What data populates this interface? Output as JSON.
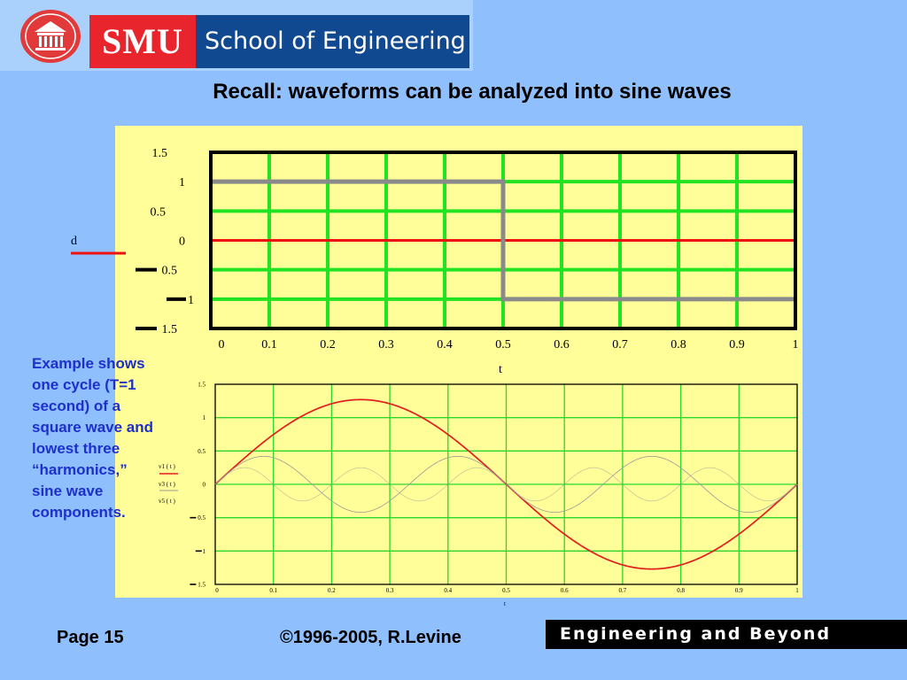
{
  "header": {
    "logo_left": "SMU",
    "logo_right": "School of Engineering"
  },
  "slide_title": "Recall: waveforms can be analyzed into sine waves",
  "side_note": "Example shows one cycle (T=1 second) of a square wave and lowest three “harmonics,” sine wave components.",
  "footer": {
    "page": "Page 15",
    "copyright": "©1996-2005, R.Levine",
    "tagline": "Engineering and Beyond"
  },
  "colors": {
    "background": "#8fbffd",
    "panel": "#fffe98",
    "grid_top": "#21e321",
    "grid_bottom": "#2ad72a",
    "square_wave": "#8a8a8a",
    "zero_line": "#ee1111",
    "v1": "#e21e1e",
    "harmonics": "#9a9a9a",
    "side_note_text": "#1d2fcc"
  },
  "chart_data": [
    {
      "type": "line",
      "xlabel": "t",
      "ylabel": "d",
      "xlim": [
        0,
        1
      ],
      "ylim": [
        -1.5,
        1.5
      ],
      "x_ticks": [
        "0",
        "0.1",
        "0.2",
        "0.3",
        "0.4",
        "0.5",
        "0.6",
        "0.7",
        "0.8",
        "0.9",
        "1"
      ],
      "y_ticks": [
        "1.5",
        "1",
        "0.5",
        "0",
        "−0.5",
        "−1",
        "−1.5"
      ],
      "grid": true,
      "series": [
        {
          "x": [
            0,
            0.5,
            0.5,
            1
          ],
          "y": [
            1,
            1,
            -1,
            -1
          ]
        }
      ]
    },
    {
      "type": "line",
      "xlabel": "t",
      "xlim": [
        0,
        1
      ],
      "ylim": [
        -1.5,
        1.5
      ],
      "x_ticks": [
        "0",
        "0.1",
        "0.2",
        "0.3",
        "0.4",
        "0.5",
        "0.6",
        "0.7",
        "0.8",
        "0.9",
        "1"
      ],
      "y_ticks": [
        "1.5",
        "1",
        "0.5",
        "0",
        "−0.5",
        "−1",
        "−1.5"
      ],
      "grid": true,
      "legend": [
        "v1 ( t )",
        "v3 ( t )",
        "v5 ( t )"
      ],
      "legend_position": "left",
      "series": [
        {
          "name": "v1 ( t )",
          "function": "sine",
          "amplitude": 1.27,
          "harmonic": 1
        },
        {
          "name": "v3 ( t )",
          "function": "sine",
          "amplitude": 0.42,
          "harmonic": 3
        },
        {
          "name": "v5 ( t )",
          "function": "sine",
          "amplitude": 0.25,
          "harmonic": 5
        }
      ]
    }
  ]
}
